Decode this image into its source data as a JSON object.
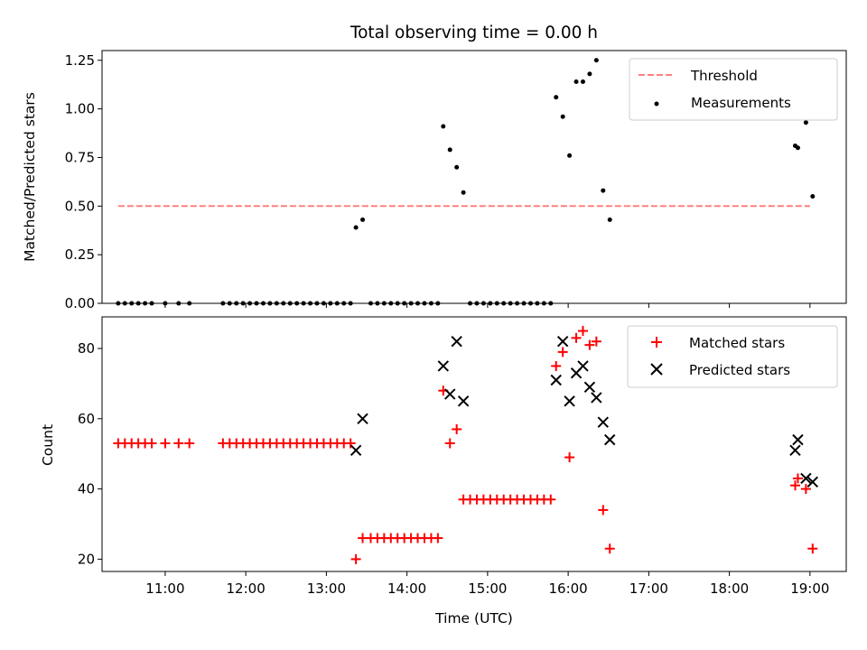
{
  "chart_data": [
    {
      "type": "scatter",
      "title": "Total observing time = 0.00 h",
      "xlabel": "",
      "ylabel": "Matched/Predicted stars",
      "ylim": [
        0,
        1.3
      ],
      "yticks": [
        "0.00",
        "0.25",
        "0.50",
        "0.75",
        "1.00",
        "1.25"
      ],
      "xlim": [
        "10:13",
        "19:27"
      ],
      "xtick_labels_shown": false,
      "grid": false,
      "legend": "top-right",
      "threshold": {
        "name": "Threshold",
        "value": 0.5,
        "x_start": "10:25",
        "x_end": "19:00",
        "color": "#ff0000",
        "style": "dashed",
        "alpha": 0.5
      },
      "series": [
        {
          "name": "Measurements",
          "color": "#000000",
          "marker": "dot",
          "points": [
            [
              "10:25",
              0
            ],
            [
              "10:30",
              0
            ],
            [
              "10:35",
              0
            ],
            [
              "10:40",
              0
            ],
            [
              "10:45",
              0
            ],
            [
              "10:50",
              0
            ],
            [
              "11:00",
              0
            ],
            [
              "11:10",
              0
            ],
            [
              "11:18",
              0
            ],
            [
              "11:43",
              0
            ],
            [
              "11:48",
              0
            ],
            [
              "11:53",
              0
            ],
            [
              "11:58",
              0
            ],
            [
              "12:03",
              0
            ],
            [
              "12:08",
              0
            ],
            [
              "12:13",
              0
            ],
            [
              "12:18",
              0
            ],
            [
              "12:23",
              0
            ],
            [
              "12:28",
              0
            ],
            [
              "12:33",
              0
            ],
            [
              "12:38",
              0
            ],
            [
              "12:43",
              0
            ],
            [
              "12:48",
              0
            ],
            [
              "12:53",
              0
            ],
            [
              "12:58",
              0
            ],
            [
              "13:03",
              0
            ],
            [
              "13:08",
              0
            ],
            [
              "13:13",
              0
            ],
            [
              "13:18",
              0
            ],
            [
              "13:22",
              0.39
            ],
            [
              "13:27",
              0.43
            ],
            [
              "13:33",
              0
            ],
            [
              "13:38",
              0
            ],
            [
              "13:43",
              0
            ],
            [
              "13:48",
              0
            ],
            [
              "13:53",
              0
            ],
            [
              "13:58",
              0
            ],
            [
              "14:03",
              0
            ],
            [
              "14:08",
              0
            ],
            [
              "14:13",
              0
            ],
            [
              "14:18",
              0
            ],
            [
              "14:23",
              0
            ],
            [
              "14:27",
              0.91
            ],
            [
              "14:32",
              0.79
            ],
            [
              "14:37",
              0.7
            ],
            [
              "14:42",
              0.57
            ],
            [
              "14:47",
              0
            ],
            [
              "14:52",
              0
            ],
            [
              "14:57",
              0
            ],
            [
              "15:02",
              0
            ],
            [
              "15:07",
              0
            ],
            [
              "15:12",
              0
            ],
            [
              "15:17",
              0
            ],
            [
              "15:22",
              0
            ],
            [
              "15:27",
              0
            ],
            [
              "15:32",
              0
            ],
            [
              "15:37",
              0
            ],
            [
              "15:42",
              0
            ],
            [
              "15:47",
              0
            ],
            [
              "15:51",
              1.06
            ],
            [
              "15:56",
              0.96
            ],
            [
              "16:01",
              0.76
            ],
            [
              "16:06",
              1.14
            ],
            [
              "16:11",
              1.14
            ],
            [
              "16:16",
              1.18
            ],
            [
              "16:21",
              1.25
            ],
            [
              "16:26",
              0.58
            ],
            [
              "16:31",
              0.43
            ],
            [
              "18:49",
              0.81
            ],
            [
              "18:51",
              0.8
            ],
            [
              "18:57",
              0.93
            ],
            [
              "19:02",
              0.55
            ]
          ]
        }
      ]
    },
    {
      "type": "scatter",
      "title": "",
      "xlabel": "Time (UTC)",
      "ylabel": "Count",
      "ylim": [
        16.5,
        89
      ],
      "yticks": [
        "20",
        "40",
        "60",
        "80"
      ],
      "xlim": [
        "10:13",
        "19:27"
      ],
      "xticks": [
        "11:00",
        "12:00",
        "13:00",
        "14:00",
        "15:00",
        "16:00",
        "17:00",
        "18:00",
        "19:00"
      ],
      "grid": false,
      "legend": "top-right",
      "series": [
        {
          "name": "Matched stars",
          "color": "#ff0000",
          "marker": "plus",
          "points": [
            [
              "10:25",
              53
            ],
            [
              "10:30",
              53
            ],
            [
              "10:35",
              53
            ],
            [
              "10:40",
              53
            ],
            [
              "10:45",
              53
            ],
            [
              "10:50",
              53
            ],
            [
              "11:00",
              53
            ],
            [
              "11:10",
              53
            ],
            [
              "11:18",
              53
            ],
            [
              "11:43",
              53
            ],
            [
              "11:48",
              53
            ],
            [
              "11:53",
              53
            ],
            [
              "11:58",
              53
            ],
            [
              "12:03",
              53
            ],
            [
              "12:08",
              53
            ],
            [
              "12:13",
              53
            ],
            [
              "12:18",
              53
            ],
            [
              "12:23",
              53
            ],
            [
              "12:28",
              53
            ],
            [
              "12:33",
              53
            ],
            [
              "12:38",
              53
            ],
            [
              "12:43",
              53
            ],
            [
              "12:48",
              53
            ],
            [
              "12:53",
              53
            ],
            [
              "12:58",
              53
            ],
            [
              "13:03",
              53
            ],
            [
              "13:08",
              53
            ],
            [
              "13:13",
              53
            ],
            [
              "13:18",
              53
            ],
            [
              "13:22",
              20
            ],
            [
              "13:27",
              26
            ],
            [
              "13:33",
              26
            ],
            [
              "13:38",
              26
            ],
            [
              "13:43",
              26
            ],
            [
              "13:48",
              26
            ],
            [
              "13:53",
              26
            ],
            [
              "13:58",
              26
            ],
            [
              "14:03",
              26
            ],
            [
              "14:08",
              26
            ],
            [
              "14:13",
              26
            ],
            [
              "14:18",
              26
            ],
            [
              "14:23",
              26
            ],
            [
              "14:27",
              68
            ],
            [
              "14:32",
              53
            ],
            [
              "14:37",
              57
            ],
            [
              "14:42",
              37
            ],
            [
              "14:47",
              37
            ],
            [
              "14:52",
              37
            ],
            [
              "14:57",
              37
            ],
            [
              "15:02",
              37
            ],
            [
              "15:07",
              37
            ],
            [
              "15:12",
              37
            ],
            [
              "15:17",
              37
            ],
            [
              "15:22",
              37
            ],
            [
              "15:27",
              37
            ],
            [
              "15:32",
              37
            ],
            [
              "15:37",
              37
            ],
            [
              "15:42",
              37
            ],
            [
              "15:47",
              37
            ],
            [
              "15:51",
              75
            ],
            [
              "15:56",
              79
            ],
            [
              "16:01",
              49
            ],
            [
              "16:06",
              83
            ],
            [
              "16:11",
              85
            ],
            [
              "16:16",
              81
            ],
            [
              "16:21",
              82
            ],
            [
              "16:26",
              34
            ],
            [
              "16:31",
              23
            ],
            [
              "18:49",
              41
            ],
            [
              "18:51",
              43
            ],
            [
              "18:57",
              40
            ],
            [
              "19:02",
              23
            ]
          ]
        },
        {
          "name": "Predicted stars",
          "color": "#000000",
          "marker": "x",
          "points": [
            [
              "13:22",
              51
            ],
            [
              "13:27",
              60
            ],
            [
              "14:27",
              75
            ],
            [
              "14:32",
              67
            ],
            [
              "14:37",
              82
            ],
            [
              "14:42",
              65
            ],
            [
              "15:51",
              71
            ],
            [
              "15:56",
              82
            ],
            [
              "16:01",
              65
            ],
            [
              "16:06",
              73
            ],
            [
              "16:11",
              75
            ],
            [
              "16:16",
              69
            ],
            [
              "16:21",
              66
            ],
            [
              "16:26",
              59
            ],
            [
              "16:31",
              54
            ],
            [
              "18:49",
              51
            ],
            [
              "18:51",
              54
            ],
            [
              "18:57",
              43
            ],
            [
              "19:02",
              42
            ]
          ]
        }
      ]
    }
  ]
}
